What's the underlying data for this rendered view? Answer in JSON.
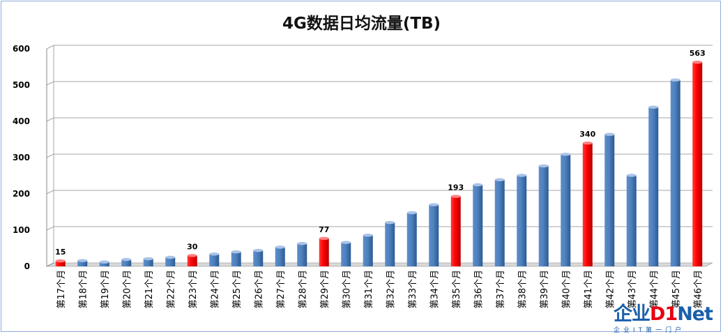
{
  "chart_data": {
    "type": "bar",
    "title": "4G数据日均流量(TB)",
    "categories": [
      "第17个月",
      "第18个月",
      "第19个月",
      "第20个月",
      "第21个月",
      "第22个月",
      "第23个月",
      "第24个月",
      "第25个月",
      "第26个月",
      "第27个月",
      "第28个月",
      "第29个月",
      "第30个月",
      "第31个月",
      "第32个月",
      "第33个月",
      "第34个月",
      "第35个月",
      "第36个月",
      "第37个月",
      "第38个月",
      "第39个月",
      "第40个月",
      "第41个月",
      "第42个月",
      "第43个月",
      "第44个月",
      "第45个月",
      "第46个月"
    ],
    "values": [
      15,
      16,
      12,
      19,
      21,
      25,
      30,
      34,
      40,
      44,
      53,
      63,
      77,
      66,
      86,
      121,
      148,
      170,
      193,
      225,
      239,
      251,
      277,
      309,
      340,
      364,
      251,
      439,
      514,
      563
    ],
    "highlighted": [
      0,
      6,
      12,
      18,
      24,
      29
    ],
    "data_labels": {
      "0": "15",
      "6": "30",
      "12": "77",
      "18": "193",
      "24": "340",
      "29": "563"
    },
    "yticks": [
      "0",
      "100",
      "200",
      "300",
      "400",
      "500",
      "600"
    ],
    "ylim": [
      0,
      600
    ],
    "grid": true,
    "colors": {
      "normal": "#4f81bd",
      "highlight": "#ff0000",
      "grid": "#a6a6a6"
    }
  },
  "watermark": {
    "main_a": "企业",
    "main_b": "D1",
    "main_c": "Net",
    "sub": "企业IT第一门户"
  }
}
